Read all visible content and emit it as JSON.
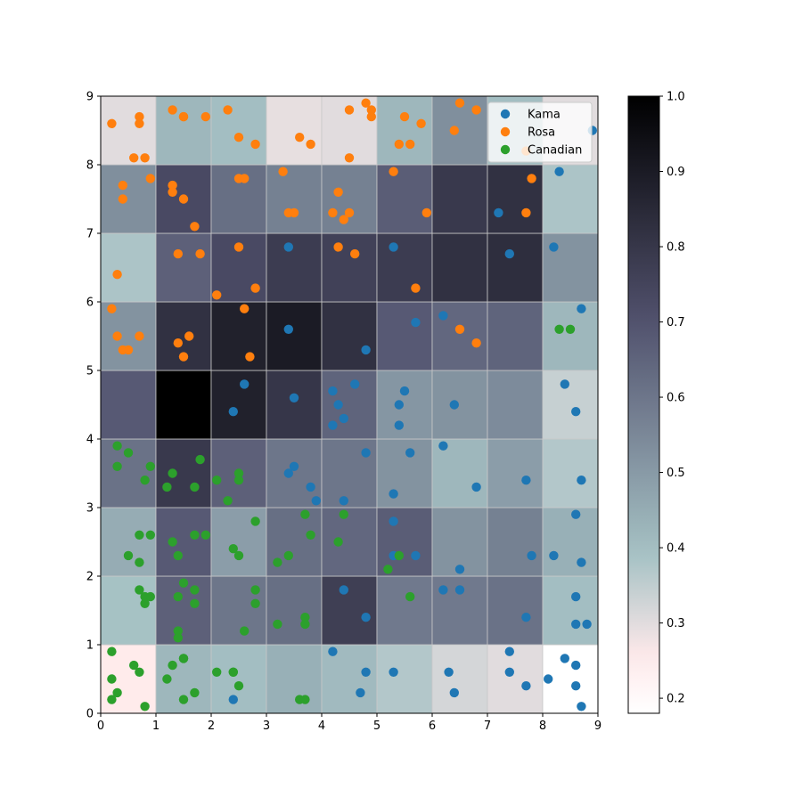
{
  "chart_data": {
    "type": "heatmap",
    "title": "",
    "xlabel": "",
    "ylabel": "",
    "xlim": [
      0,
      9
    ],
    "ylim": [
      0,
      9
    ],
    "x_ticks": [
      "0",
      "1",
      "2",
      "3",
      "4",
      "5",
      "6",
      "7",
      "8",
      "9"
    ],
    "y_ticks": [
      "0",
      "1",
      "2",
      "3",
      "4",
      "5",
      "6",
      "7",
      "8",
      "9"
    ],
    "grid": true,
    "heatmap": {
      "colormap": "bone_r",
      "vmin": 0.18,
      "vmax": 1.0,
      "rows": [
        [
          0.25,
          0.42,
          0.4,
          0.44,
          0.41,
          0.37,
          0.32,
          0.3,
          0.18
        ],
        [
          0.39,
          0.66,
          0.6,
          0.62,
          0.77,
          0.59,
          0.59,
          0.61,
          0.4
        ],
        [
          0.45,
          0.68,
          0.49,
          0.62,
          0.64,
          0.67,
          0.52,
          0.57,
          0.44
        ],
        [
          0.61,
          0.79,
          0.66,
          0.6,
          0.6,
          0.52,
          0.42,
          0.49,
          0.37
        ],
        [
          0.68,
          1.0,
          0.88,
          0.8,
          0.65,
          0.51,
          0.52,
          0.54,
          0.34
        ],
        [
          0.52,
          0.82,
          0.88,
          0.9,
          0.82,
          0.68,
          0.64,
          0.65,
          0.42
        ],
        [
          0.38,
          0.66,
          0.73,
          0.78,
          0.76,
          0.78,
          0.82,
          0.83,
          0.52
        ],
        [
          0.53,
          0.73,
          0.62,
          0.57,
          0.57,
          0.67,
          0.79,
          0.82,
          0.38
        ],
        [
          0.3,
          0.42,
          0.4,
          0.29,
          0.3,
          0.42,
          0.53,
          0.4,
          0.3
        ]
      ]
    },
    "colorbar": {
      "ticks": [
        "0.2",
        "0.3",
        "0.4",
        "0.5",
        "0.6",
        "0.7",
        "0.8",
        "0.9",
        "1.0"
      ],
      "tick_values": [
        0.2,
        0.3,
        0.4,
        0.5,
        0.6,
        0.7,
        0.8,
        0.9,
        1.0
      ]
    },
    "legend_position": "top-right",
    "series": [
      {
        "name": "Kama",
        "color": "#1f77b4",
        "points": [
          [
            8.9,
            8.5
          ],
          [
            8.3,
            7.9
          ],
          [
            7.2,
            7.3
          ],
          [
            8.2,
            6.8
          ],
          [
            7.4,
            6.7
          ],
          [
            3.4,
            6.8
          ],
          [
            5.3,
            6.8
          ],
          [
            8.7,
            5.9
          ],
          [
            6.2,
            5.8
          ],
          [
            5.7,
            5.7
          ],
          [
            3.4,
            5.6
          ],
          [
            4.8,
            5.3
          ],
          [
            2.6,
            4.8
          ],
          [
            2.4,
            4.4
          ],
          [
            3.5,
            4.6
          ],
          [
            4.2,
            4.7
          ],
          [
            4.6,
            4.8
          ],
          [
            4.3,
            4.5
          ],
          [
            4.4,
            4.3
          ],
          [
            4.2,
            4.2
          ],
          [
            5.5,
            4.7
          ],
          [
            5.4,
            4.5
          ],
          [
            5.4,
            4.2
          ],
          [
            6.4,
            4.5
          ],
          [
            8.4,
            4.8
          ],
          [
            8.6,
            4.4
          ],
          [
            3.5,
            3.6
          ],
          [
            3.4,
            3.5
          ],
          [
            3.8,
            3.3
          ],
          [
            3.9,
            3.1
          ],
          [
            4.4,
            3.1
          ],
          [
            4.8,
            3.8
          ],
          [
            5.6,
            3.8
          ],
          [
            6.2,
            3.9
          ],
          [
            5.3,
            3.2
          ],
          [
            6.8,
            3.3
          ],
          [
            7.7,
            3.4
          ],
          [
            8.7,
            3.4
          ],
          [
            5.3,
            2.8
          ],
          [
            8.6,
            2.9
          ],
          [
            5.3,
            2.3
          ],
          [
            5.7,
            2.3
          ],
          [
            6.5,
            2.1
          ],
          [
            7.8,
            2.3
          ],
          [
            8.2,
            2.3
          ],
          [
            8.7,
            2.2
          ],
          [
            6.2,
            1.8
          ],
          [
            6.5,
            1.8
          ],
          [
            4.4,
            1.8
          ],
          [
            4.8,
            1.4
          ],
          [
            7.7,
            1.4
          ],
          [
            8.6,
            1.7
          ],
          [
            8.6,
            1.3
          ],
          [
            8.8,
            1.3
          ],
          [
            4.2,
            0.9
          ],
          [
            4.8,
            0.6
          ],
          [
            5.3,
            0.6
          ],
          [
            6.3,
            0.6
          ],
          [
            6.4,
            0.3
          ],
          [
            4.7,
            0.3
          ],
          [
            2.4,
            0.2
          ],
          [
            7.4,
            0.9
          ],
          [
            7.4,
            0.6
          ],
          [
            7.7,
            0.4
          ],
          [
            8.1,
            0.5
          ],
          [
            8.4,
            0.8
          ],
          [
            8.6,
            0.7
          ],
          [
            8.6,
            0.4
          ],
          [
            8.7,
            0.1
          ]
        ]
      },
      {
        "name": "Rosa",
        "color": "#ff7f0e",
        "points": [
          [
            0.2,
            8.6
          ],
          [
            0.7,
            8.7
          ],
          [
            0.7,
            8.6
          ],
          [
            0.6,
            8.1
          ],
          [
            0.8,
            8.1
          ],
          [
            1.3,
            8.8
          ],
          [
            1.5,
            8.7
          ],
          [
            1.5,
            8.7
          ],
          [
            1.9,
            8.7
          ],
          [
            2.3,
            8.8
          ],
          [
            2.5,
            8.4
          ],
          [
            2.8,
            8.3
          ],
          [
            3.6,
            8.4
          ],
          [
            3.8,
            8.3
          ],
          [
            4.5,
            8.8
          ],
          [
            4.8,
            8.9
          ],
          [
            4.9,
            8.8
          ],
          [
            4.9,
            8.7
          ],
          [
            4.5,
            8.1
          ],
          [
            5.5,
            8.7
          ],
          [
            5.8,
            8.6
          ],
          [
            5.4,
            8.3
          ],
          [
            5.6,
            8.3
          ],
          [
            6.5,
            8.9
          ],
          [
            6.8,
            8.8
          ],
          [
            6.4,
            8.5
          ],
          [
            7.7,
            8.2
          ],
          [
            0.4,
            7.7
          ],
          [
            0.4,
            7.5
          ],
          [
            0.9,
            7.8
          ],
          [
            1.3,
            7.7
          ],
          [
            1.3,
            7.6
          ],
          [
            1.5,
            7.5
          ],
          [
            1.7,
            7.1
          ],
          [
            2.5,
            7.8
          ],
          [
            2.6,
            7.8
          ],
          [
            3.3,
            7.9
          ],
          [
            3.4,
            7.3
          ],
          [
            3.5,
            7.3
          ],
          [
            4.3,
            7.6
          ],
          [
            4.2,
            7.3
          ],
          [
            4.4,
            7.2
          ],
          [
            4.5,
            7.3
          ],
          [
            5.3,
            7.9
          ],
          [
            5.9,
            7.3
          ],
          [
            7.8,
            7.8
          ],
          [
            7.7,
            7.3
          ],
          [
            0.3,
            6.4
          ],
          [
            1.4,
            6.7
          ],
          [
            1.8,
            6.7
          ],
          [
            2.5,
            6.8
          ],
          [
            2.1,
            6.1
          ],
          [
            2.8,
            6.2
          ],
          [
            4.3,
            6.8
          ],
          [
            4.6,
            6.7
          ],
          [
            5.7,
            6.2
          ],
          [
            0.2,
            5.9
          ],
          [
            0.3,
            5.5
          ],
          [
            0.7,
            5.5
          ],
          [
            0.4,
            5.3
          ],
          [
            0.5,
            5.3
          ],
          [
            1.6,
            5.5
          ],
          [
            1.4,
            5.4
          ],
          [
            1.5,
            5.2
          ],
          [
            2.6,
            5.9
          ],
          [
            2.7,
            5.2
          ],
          [
            6.5,
            5.6
          ],
          [
            6.8,
            5.4
          ]
        ]
      },
      {
        "name": "Canadian",
        "color": "#2ca02c",
        "points": [
          [
            0.3,
            3.9
          ],
          [
            0.5,
            3.8
          ],
          [
            0.3,
            3.6
          ],
          [
            0.8,
            3.4
          ],
          [
            0.9,
            3.6
          ],
          [
            1.3,
            3.5
          ],
          [
            1.2,
            3.3
          ],
          [
            1.7,
            3.3
          ],
          [
            1.8,
            3.7
          ],
          [
            2.1,
            3.4
          ],
          [
            2.3,
            3.1
          ],
          [
            2.5,
            3.5
          ],
          [
            2.5,
            3.4
          ],
          [
            0.7,
            2.6
          ],
          [
            0.9,
            2.6
          ],
          [
            0.5,
            2.3
          ],
          [
            0.7,
            2.2
          ],
          [
            1.3,
            2.5
          ],
          [
            1.4,
            2.3
          ],
          [
            1.7,
            2.6
          ],
          [
            1.9,
            2.6
          ],
          [
            2.4,
            2.4
          ],
          [
            2.5,
            2.3
          ],
          [
            2.8,
            2.8
          ],
          [
            3.2,
            2.2
          ],
          [
            3.4,
            2.3
          ],
          [
            3.7,
            2.9
          ],
          [
            3.8,
            2.6
          ],
          [
            4.3,
            2.5
          ],
          [
            4.4,
            2.9
          ],
          [
            5.2,
            2.1
          ],
          [
            5.4,
            2.3
          ],
          [
            0.7,
            1.8
          ],
          [
            0.8,
            1.7
          ],
          [
            0.8,
            1.6
          ],
          [
            0.9,
            1.7
          ],
          [
            1.4,
            1.7
          ],
          [
            1.5,
            1.9
          ],
          [
            1.7,
            1.8
          ],
          [
            1.7,
            1.6
          ],
          [
            1.4,
            1.2
          ],
          [
            1.4,
            1.1
          ],
          [
            2.6,
            1.2
          ],
          [
            2.8,
            1.8
          ],
          [
            2.8,
            1.6
          ],
          [
            3.2,
            1.3
          ],
          [
            3.7,
            1.4
          ],
          [
            3.7,
            1.3
          ],
          [
            5.6,
            1.7
          ],
          [
            0.2,
            0.9
          ],
          [
            0.2,
            0.5
          ],
          [
            0.2,
            0.2
          ],
          [
            0.3,
            0.3
          ],
          [
            0.6,
            0.7
          ],
          [
            0.7,
            0.6
          ],
          [
            0.8,
            0.1
          ],
          [
            1.2,
            0.5
          ],
          [
            1.3,
            0.7
          ],
          [
            1.5,
            0.8
          ],
          [
            1.5,
            0.8
          ],
          [
            1.5,
            0.2
          ],
          [
            1.7,
            0.3
          ],
          [
            2.1,
            0.6
          ],
          [
            2.4,
            0.6
          ],
          [
            2.4,
            0.6
          ],
          [
            2.5,
            0.4
          ],
          [
            3.6,
            0.2
          ],
          [
            3.7,
            0.2
          ],
          [
            8.3,
            5.6
          ],
          [
            8.5,
            5.6
          ]
        ]
      }
    ]
  }
}
